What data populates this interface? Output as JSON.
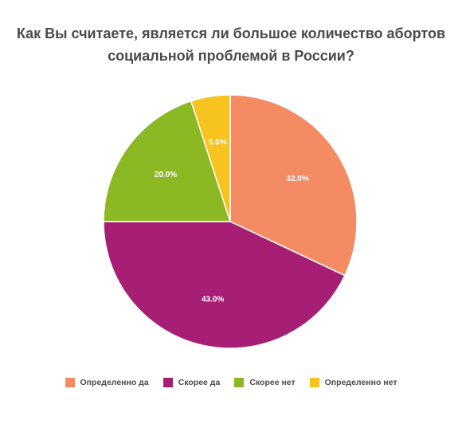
{
  "chart_data": {
    "type": "pie",
    "title_lines": [
      "Как Вы считаете, является ли большое количество абортов",
      "социальной проблемой в России?"
    ],
    "slices": [
      {
        "name": "Определенно да",
        "value": 32.0,
        "label": "32.0%",
        "color": "#f48b63"
      },
      {
        "name": "Скорее да",
        "value": 43.0,
        "label": "43.0%",
        "color": "#a61f74"
      },
      {
        "name": "Скорее нет",
        "value": 20.0,
        "label": "20.0%",
        "color": "#8cb824"
      },
      {
        "name": "Определенно нет",
        "value": 5.0,
        "label": "5.0%",
        "color": "#f7c41f"
      }
    ],
    "start": "12-o'clock",
    "direction": "clockwise",
    "legend_position": "bottom"
  }
}
